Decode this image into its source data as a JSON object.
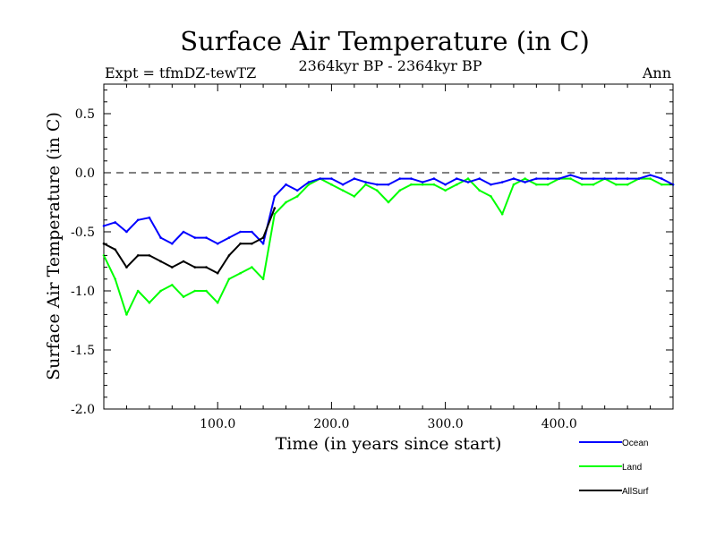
{
  "chart_data": {
    "type": "line",
    "title": "Surface Air Temperature (in C)",
    "subtitle_left": "Expt = tfmDZ-tewTZ",
    "subtitle_center": "2364kyr BP - 2364kyr BP",
    "subtitle_right": "Ann",
    "xlabel": "Time (in years since start)",
    "ylabel": "Surface Air Temperature (in C)",
    "xlim": [
      0,
      500
    ],
    "ylim": [
      -2.0,
      0.75
    ],
    "x_ticks": [
      100,
      200,
      300,
      400
    ],
    "x_tick_labels": [
      "100.0",
      "200.0",
      "300.0",
      "400.0"
    ],
    "y_ticks": [
      -2.0,
      -1.5,
      -1.0,
      -0.5,
      0.0,
      0.5
    ],
    "y_tick_labels": [
      "-2.0",
      "-1.5",
      "-1.0",
      "-0.5",
      "0.0",
      "0.5"
    ],
    "reference_line": 0.0,
    "x_step": 10,
    "series": [
      {
        "name": "Ocean",
        "color": "#0000ff",
        "x_start": 0,
        "values": [
          -0.45,
          -0.42,
          -0.5,
          -0.4,
          -0.38,
          -0.55,
          -0.6,
          -0.5,
          -0.55,
          -0.55,
          -0.6,
          -0.55,
          -0.5,
          -0.5,
          -0.6,
          -0.2,
          -0.1,
          -0.15,
          -0.08,
          -0.05,
          -0.05,
          -0.1,
          -0.05,
          -0.08,
          -0.1,
          -0.1,
          -0.05,
          -0.05,
          -0.08,
          -0.05,
          -0.1,
          -0.05,
          -0.08,
          -0.05,
          -0.1,
          -0.08,
          -0.05,
          -0.08,
          -0.05,
          -0.05,
          -0.05,
          -0.02,
          -0.05,
          -0.05,
          -0.05,
          -0.05,
          -0.05,
          -0.05,
          -0.02,
          -0.05,
          -0.1
        ]
      },
      {
        "name": "Land",
        "color": "#00ff00",
        "x_start": 0,
        "values": [
          -0.7,
          -0.9,
          -1.2,
          -1.0,
          -1.1,
          -1.0,
          -0.95,
          -1.05,
          -1.0,
          -1.0,
          -1.1,
          -0.9,
          -0.85,
          -0.8,
          -0.9,
          -0.35,
          -0.25,
          -0.2,
          -0.1,
          -0.05,
          -0.1,
          -0.15,
          -0.2,
          -0.1,
          -0.15,
          -0.25,
          -0.15,
          -0.1,
          -0.1,
          -0.1,
          -0.15,
          -0.1,
          -0.05,
          -0.15,
          -0.2,
          -0.35,
          -0.1,
          -0.05,
          -0.1,
          -0.1,
          -0.05,
          -0.05,
          -0.1,
          -0.1,
          -0.05,
          -0.1,
          -0.1,
          -0.05,
          -0.05,
          -0.1,
          -0.1
        ]
      },
      {
        "name": "AllSurf",
        "color": "#000000",
        "x_start": 0,
        "values": [
          -0.6,
          -0.65,
          -0.8,
          -0.7,
          -0.7,
          -0.75,
          -0.8,
          -0.75,
          -0.8,
          -0.8,
          -0.85,
          -0.7,
          -0.6,
          -0.6,
          -0.55,
          -0.3
        ]
      }
    ],
    "legend": [
      "Ocean",
      "Land",
      "AllSurf"
    ],
    "legend_position": "bottom-right"
  }
}
